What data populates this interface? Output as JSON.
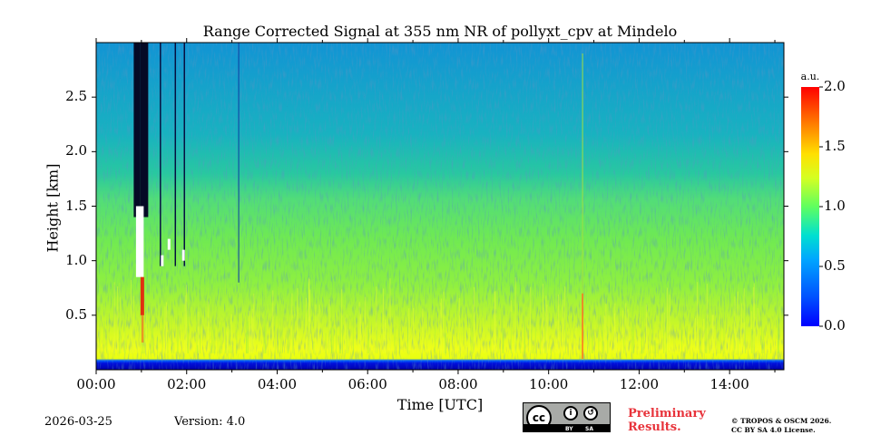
{
  "chart_data": {
    "type": "heatmap",
    "title": "Range Corrected Signal at 355 nm NR of pollyxt_cpv at Mindelo",
    "xlabel": "Time [UTC]",
    "ylabel": "Height [km]",
    "xlim": [
      0,
      15.2
    ],
    "ylim": [
      0,
      3.0
    ],
    "x_ticks": [
      0,
      2,
      4,
      6,
      8,
      10,
      12,
      14
    ],
    "x_tick_labels": [
      "00:00",
      "02:00",
      "04:00",
      "06:00",
      "08:00",
      "10:00",
      "12:00",
      "14:00"
    ],
    "y_ticks": [
      0.5,
      1.0,
      1.5,
      2.0,
      2.5
    ],
    "y_tick_labels": [
      "0.5",
      "1.0",
      "1.5",
      "2.0",
      "2.5"
    ],
    "colorbar": {
      "label": "a.u.",
      "range": [
        0.0,
        2.0
      ],
      "ticks": [
        0.0,
        0.5,
        1.0,
        1.5,
        2.0
      ],
      "tick_labels": [
        "0.0",
        "0.5",
        "1.0",
        "1.5",
        "2.0"
      ],
      "colormap": "jet"
    },
    "features": {
      "surface_layer_top_km": 0.1,
      "boundary_layer_top_km": 0.75,
      "aerosol_layer_top_km": 1.55,
      "cloud_period_start_h": 0.8,
      "cloud_period_end_h": 1.95,
      "cloud_base_km": 0.5
    }
  },
  "footer": {
    "date": "2026-03-25",
    "version": "Version: 4.0",
    "preliminary": [
      "Preliminary",
      "Results."
    ],
    "copyright": [
      "© TROPOS & OSCM 2026.",
      "CC BY SA 4.0 License."
    ],
    "license_badge": {
      "icon": "cc-by-sa-icon",
      "cc_text": "cc",
      "by_text": "BY",
      "sa_text": "SA"
    }
  },
  "colors": {
    "background": "#ffffff",
    "preliminary_text": "#e8333b",
    "badge_grey": "#a8aaa7"
  }
}
